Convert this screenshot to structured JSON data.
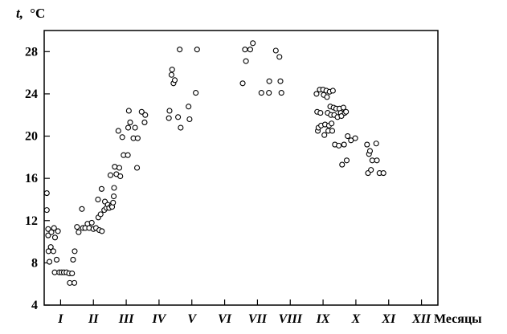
{
  "chart_data": {
    "type": "scatter",
    "ylabel_symbol": "t,",
    "ylabel_unit": "°C",
    "xlabel": "Месяцы",
    "ylim": [
      4,
      30
    ],
    "yticks": [
      4,
      8,
      12,
      16,
      20,
      24,
      28
    ],
    "xlim": [
      0.5,
      12.5
    ],
    "month_ticks": [
      1,
      2,
      3,
      4,
      5,
      6,
      7,
      8,
      9,
      10,
      11,
      12
    ],
    "month_labels": [
      "I",
      "II",
      "III",
      "IV",
      "V",
      "VI",
      "VII",
      "VIII",
      "IX",
      "X",
      "XI",
      "XII"
    ],
    "grid": false,
    "legend": "none",
    "marker": "open-circle",
    "points": [
      [
        0.58,
        14.6
      ],
      [
        0.58,
        13.0
      ],
      [
        0.62,
        11.2
      ],
      [
        0.62,
        10.6
      ],
      [
        0.63,
        9.1
      ],
      [
        0.66,
        8.1
      ],
      [
        0.7,
        9.5
      ],
      [
        0.72,
        10.9
      ],
      [
        0.78,
        9.1
      ],
      [
        0.8,
        11.3
      ],
      [
        0.83,
        10.4
      ],
      [
        0.82,
        7.1
      ],
      [
        0.88,
        8.3
      ],
      [
        0.92,
        11.0
      ],
      [
        0.96,
        7.1
      ],
      [
        1.03,
        7.1
      ],
      [
        1.1,
        7.1
      ],
      [
        1.18,
        7.1
      ],
      [
        1.26,
        7.0
      ],
      [
        1.28,
        6.1
      ],
      [
        1.35,
        7.0
      ],
      [
        1.42,
        6.1
      ],
      [
        1.38,
        8.3
      ],
      [
        1.43,
        9.1
      ],
      [
        1.5,
        11.4
      ],
      [
        1.55,
        10.9
      ],
      [
        1.65,
        13.1
      ],
      [
        1.68,
        11.3
      ],
      [
        1.75,
        11.3
      ],
      [
        1.82,
        11.7
      ],
      [
        1.87,
        11.3
      ],
      [
        1.95,
        11.8
      ],
      [
        2.0,
        11.2
      ],
      [
        2.08,
        11.3
      ],
      [
        2.15,
        12.3
      ],
      [
        2.14,
        14.0
      ],
      [
        2.18,
        11.1
      ],
      [
        2.22,
        12.6
      ],
      [
        2.26,
        11.0
      ],
      [
        2.25,
        15.0
      ],
      [
        2.33,
        13.0
      ],
      [
        2.35,
        13.8
      ],
      [
        2.4,
        13.2
      ],
      [
        2.44,
        13.5
      ],
      [
        2.48,
        13.2
      ],
      [
        2.52,
        16.3
      ],
      [
        2.55,
        13.4
      ],
      [
        2.57,
        13.3
      ],
      [
        2.6,
        13.7
      ],
      [
        2.62,
        14.3
      ],
      [
        2.63,
        15.1
      ],
      [
        2.65,
        17.1
      ],
      [
        2.7,
        16.4
      ],
      [
        2.76,
        20.5
      ],
      [
        2.79,
        17.0
      ],
      [
        2.82,
        16.2
      ],
      [
        2.88,
        19.9
      ],
      [
        2.92,
        18.2
      ],
      [
        3.05,
        18.2
      ],
      [
        3.06,
        20.8
      ],
      [
        3.08,
        22.4
      ],
      [
        3.12,
        21.3
      ],
      [
        3.22,
        19.8
      ],
      [
        3.27,
        20.8
      ],
      [
        3.33,
        17.0
      ],
      [
        3.35,
        19.8
      ],
      [
        3.47,
        22.3
      ],
      [
        3.56,
        21.3
      ],
      [
        3.58,
        22.0
      ],
      [
        4.3,
        21.7
      ],
      [
        4.32,
        22.4
      ],
      [
        4.38,
        25.8
      ],
      [
        4.4,
        26.3
      ],
      [
        4.44,
        25.0
      ],
      [
        4.48,
        25.3
      ],
      [
        4.58,
        21.8
      ],
      [
        4.63,
        28.2
      ],
      [
        4.66,
        20.8
      ],
      [
        4.9,
        22.8
      ],
      [
        4.93,
        21.6
      ],
      [
        5.12,
        24.1
      ],
      [
        5.16,
        28.2
      ],
      [
        6.55,
        25.0
      ],
      [
        6.62,
        28.2
      ],
      [
        6.65,
        27.1
      ],
      [
        6.78,
        28.2
      ],
      [
        6.86,
        28.8
      ],
      [
        7.12,
        24.1
      ],
      [
        7.35,
        24.1
      ],
      [
        7.36,
        25.2
      ],
      [
        7.56,
        28.1
      ],
      [
        7.67,
        27.5
      ],
      [
        7.7,
        25.2
      ],
      [
        7.73,
        24.1
      ],
      [
        8.8,
        24.0
      ],
      [
        8.82,
        22.3
      ],
      [
        8.84,
        20.5
      ],
      [
        8.86,
        20.8
      ],
      [
        8.9,
        24.4
      ],
      [
        8.92,
        22.2
      ],
      [
        8.94,
        21.0
      ],
      [
        9.0,
        24.4
      ],
      [
        9.02,
        23.9
      ],
      [
        9.04,
        20.1
      ],
      [
        9.06,
        21.1
      ],
      [
        9.1,
        24.3
      ],
      [
        9.12,
        23.7
      ],
      [
        9.14,
        22.2
      ],
      [
        9.16,
        20.5
      ],
      [
        9.18,
        21.0
      ],
      [
        9.2,
        24.2
      ],
      [
        9.22,
        22.8
      ],
      [
        9.24,
        22.0
      ],
      [
        9.26,
        21.2
      ],
      [
        9.28,
        20.5
      ],
      [
        9.3,
        24.3
      ],
      [
        9.32,
        22.7
      ],
      [
        9.34,
        22.0
      ],
      [
        9.36,
        19.2
      ],
      [
        9.4,
        22.6
      ],
      [
        9.44,
        21.8
      ],
      [
        9.48,
        19.1
      ],
      [
        9.5,
        22.6
      ],
      [
        9.54,
        22.2
      ],
      [
        9.56,
        21.9
      ],
      [
        9.58,
        17.3
      ],
      [
        9.62,
        22.7
      ],
      [
        9.64,
        19.2
      ],
      [
        9.66,
        22.2
      ],
      [
        9.7,
        22.3
      ],
      [
        9.72,
        17.7
      ],
      [
        9.75,
        20.0
      ],
      [
        9.85,
        19.6
      ],
      [
        9.98,
        19.8
      ],
      [
        10.34,
        19.2
      ],
      [
        10.37,
        16.5
      ],
      [
        10.4,
        18.3
      ],
      [
        10.43,
        18.6
      ],
      [
        10.46,
        16.8
      ],
      [
        10.5,
        17.7
      ],
      [
        10.62,
        19.3
      ],
      [
        10.64,
        17.7
      ],
      [
        10.72,
        16.5
      ],
      [
        10.84,
        16.5
      ]
    ]
  }
}
